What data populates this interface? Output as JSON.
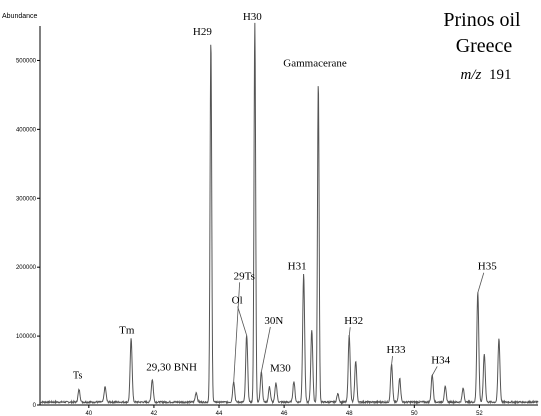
{
  "chart_data": {
    "type": "line",
    "title": "Prinos oil",
    "subtitle": "Greece",
    "mz_prefix": "m/z",
    "mz_value": "191",
    "ylabel": "Abundance",
    "xlabel": "",
    "xlim": [
      38.5,
      53.8
    ],
    "ylim": [
      0,
      550000
    ],
    "y_ticks": [
      0,
      100000,
      200000,
      300000,
      400000,
      500000
    ],
    "y_tick_labels": [
      "0",
      "100000",
      "200000",
      "300000",
      "400000",
      "500000"
    ],
    "x_ticks": [
      40,
      42,
      44,
      46,
      48,
      50,
      52
    ],
    "x_tick_labels": [
      "40",
      "42",
      "44",
      "46",
      "48",
      "50",
      "52"
    ],
    "grid": false,
    "series_color": "#555555",
    "baseline": 3000,
    "series": [
      {
        "peaks": [
          {
            "x": 39.7,
            "y": 18000,
            "w": 0.03
          },
          {
            "x": 40.5,
            "y": 22000,
            "w": 0.03
          },
          {
            "x": 41.3,
            "y": 92000,
            "w": 0.03
          },
          {
            "x": 41.95,
            "y": 33000,
            "w": 0.03
          },
          {
            "x": 43.3,
            "y": 14000,
            "w": 0.03
          },
          {
            "x": 43.75,
            "y": 525000,
            "w": 0.025
          },
          {
            "x": 44.45,
            "y": 30000,
            "w": 0.03
          },
          {
            "x": 44.85,
            "y": 98000,
            "w": 0.03
          },
          {
            "x": 45.1,
            "y": 550000,
            "w": 0.025
          },
          {
            "x": 45.3,
            "y": 45000,
            "w": 0.03
          },
          {
            "x": 45.55,
            "y": 22000,
            "w": 0.03
          },
          {
            "x": 45.75,
            "y": 28000,
            "w": 0.03
          },
          {
            "x": 46.3,
            "y": 30000,
            "w": 0.03
          },
          {
            "x": 46.6,
            "y": 185000,
            "w": 0.03
          },
          {
            "x": 46.85,
            "y": 105000,
            "w": 0.03
          },
          {
            "x": 47.05,
            "y": 465000,
            "w": 0.025
          },
          {
            "x": 47.65,
            "y": 12000,
            "w": 0.03
          },
          {
            "x": 48.0,
            "y": 97000,
            "w": 0.03
          },
          {
            "x": 48.2,
            "y": 60000,
            "w": 0.03
          },
          {
            "x": 49.3,
            "y": 55000,
            "w": 0.03
          },
          {
            "x": 49.55,
            "y": 35000,
            "w": 0.03
          },
          {
            "x": 50.55,
            "y": 40000,
            "w": 0.03
          },
          {
            "x": 50.95,
            "y": 22000,
            "w": 0.03
          },
          {
            "x": 51.5,
            "y": 20000,
            "w": 0.03
          },
          {
            "x": 51.95,
            "y": 160000,
            "w": 0.03
          },
          {
            "x": 52.15,
            "y": 70000,
            "w": 0.03
          },
          {
            "x": 52.6,
            "y": 92000,
            "w": 0.03
          }
        ]
      }
    ],
    "annotations": [
      {
        "text": "Ts",
        "x": 39.7,
        "y": 18000
      },
      {
        "text": "Tm",
        "x": 41.3,
        "y": 92000
      },
      {
        "text": "29,30 BNH",
        "x": 41.95,
        "y": 33000
      },
      {
        "text": "H29",
        "x": 43.75,
        "y": 525000
      },
      {
        "text": "29Ts",
        "x": 44.45,
        "y": 30000
      },
      {
        "text": "Ol",
        "x": 44.85,
        "y": 98000
      },
      {
        "text": "H30",
        "x": 45.1,
        "y": 550000
      },
      {
        "text": "30N",
        "x": 45.3,
        "y": 45000
      },
      {
        "text": "M30",
        "x": 45.75,
        "y": 28000
      },
      {
        "text": "H31",
        "x": 46.6,
        "y": 185000
      },
      {
        "text": "Gammacerane",
        "x": 47.05,
        "y": 465000
      },
      {
        "text": "H32",
        "x": 48.0,
        "y": 97000
      },
      {
        "text": "H33",
        "x": 49.3,
        "y": 55000
      },
      {
        "text": "H34",
        "x": 50.55,
        "y": 40000
      },
      {
        "text": "H35",
        "x": 51.95,
        "y": 160000
      }
    ]
  }
}
